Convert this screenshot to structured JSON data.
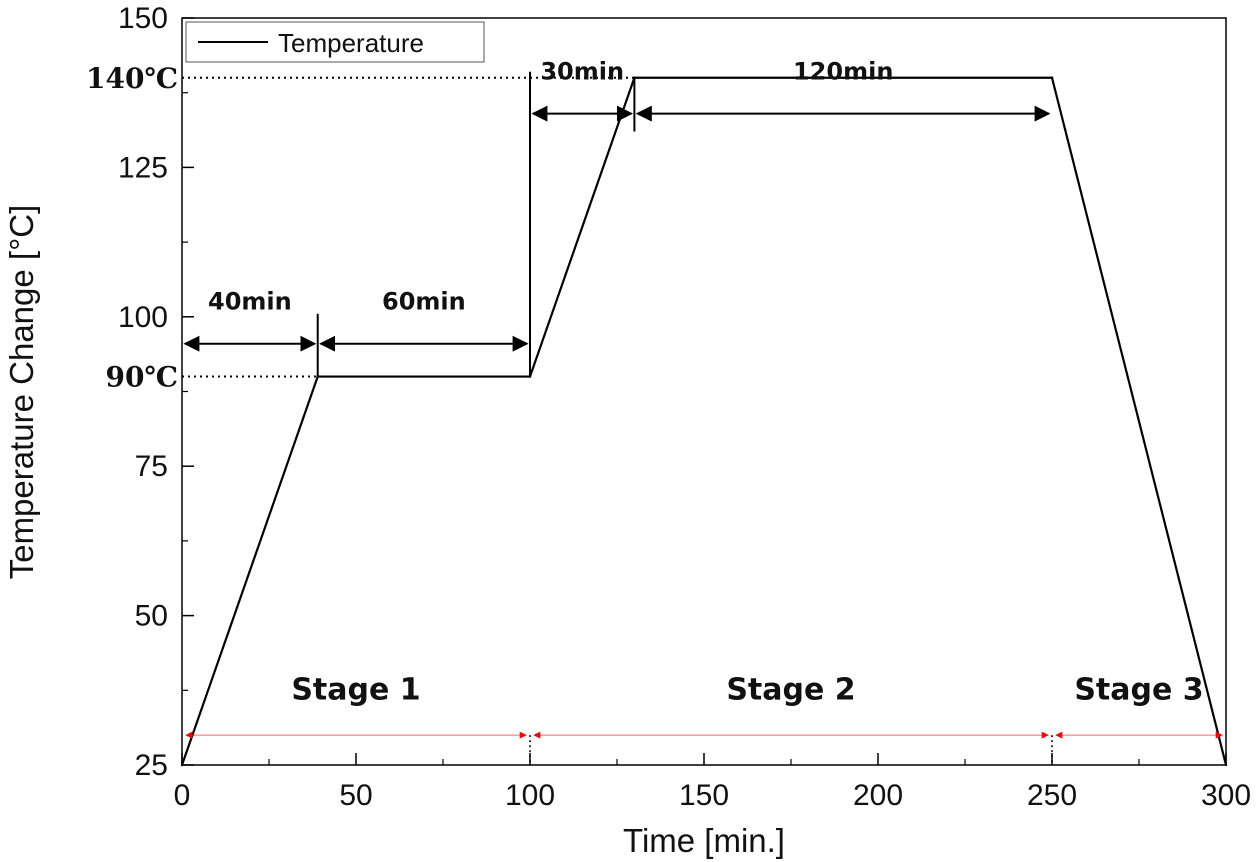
{
  "chart_data": {
    "type": "line",
    "title": "",
    "xlabel": "Time [min.]",
    "ylabel": "Temperature Change [°C]",
    "xlim": [
      0,
      300
    ],
    "ylim": [
      25,
      150
    ],
    "x_ticks": [
      0,
      50,
      100,
      150,
      200,
      250,
      300
    ],
    "y_ticks": [
      25,
      50,
      75,
      100,
      125,
      150
    ],
    "grid": false,
    "legend": {
      "position": "top-left",
      "entries": [
        "Temperature"
      ]
    },
    "series": [
      {
        "name": "Temperature",
        "color": "#000000",
        "points": [
          [
            0,
            25
          ],
          [
            39,
            90
          ],
          [
            100,
            90
          ],
          [
            130,
            140
          ],
          [
            250,
            140
          ],
          [
            300,
            25
          ]
        ]
      }
    ],
    "annotations": {
      "temperature_marks": [
        {
          "label": "140℃",
          "y": 140
        },
        {
          "label": "90℃",
          "y": 90
        }
      ],
      "durations": [
        {
          "label": "40min",
          "x_start": 0,
          "x_end": 39,
          "y": 95.5
        },
        {
          "label": "60min",
          "x_start": 39,
          "x_end": 100,
          "y": 95.5
        },
        {
          "label": "30min",
          "x_start": 100,
          "x_end": 130,
          "y": 134
        },
        {
          "label": "120min",
          "x_start": 130,
          "x_end": 250,
          "y": 134
        }
      ],
      "stages": [
        {
          "label": "Stage 1",
          "x_start": 0,
          "x_end": 100
        },
        {
          "label": "Stage 2",
          "x_start": 100,
          "x_end": 250
        },
        {
          "label": "Stage 3",
          "x_start": 250,
          "x_end": 300
        }
      ],
      "stage_arrow_y": 30,
      "stage_label_y": 36,
      "stage_color": "#ff0000"
    }
  }
}
